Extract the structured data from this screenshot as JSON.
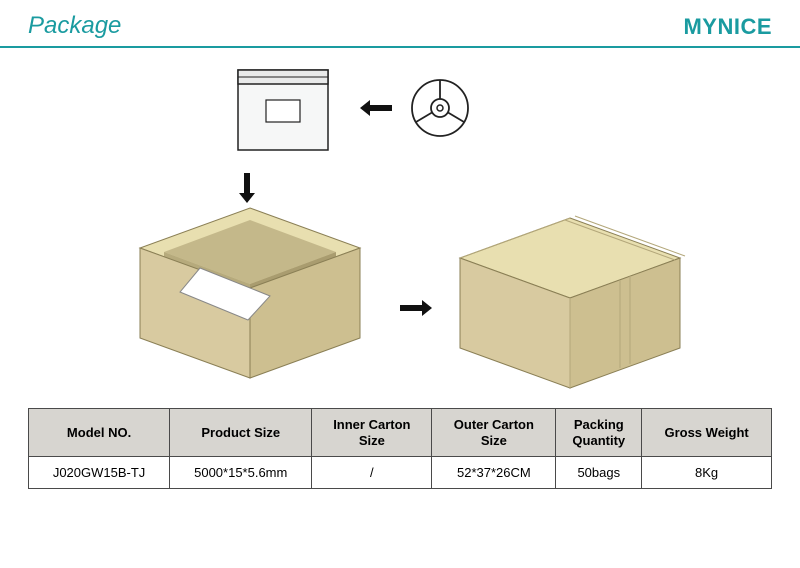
{
  "header": {
    "title": "Package",
    "brand": "MYNICE"
  },
  "colors": {
    "accent": "#1a9ba0",
    "header_bg": "#d7d5d0",
    "border": "#4a4a4a",
    "box_top": "#e8dfb0",
    "box_left": "#d8caa0",
    "box_right": "#cdbf90",
    "box_inner": "#f2eed8",
    "box_inner_dark": "#c4b88a"
  },
  "table": {
    "columns": [
      "Model NO.",
      "Product Size",
      "Inner Carton\nSize",
      "Outer Carton\nSize",
      "Packing\nQuantity",
      "Gross Weight"
    ],
    "rows": [
      [
        "J020GW15B-TJ",
        "5000*15*5.6mm",
        "/",
        "52*37*26CM",
        "50bags",
        "8Kg"
      ]
    ]
  }
}
